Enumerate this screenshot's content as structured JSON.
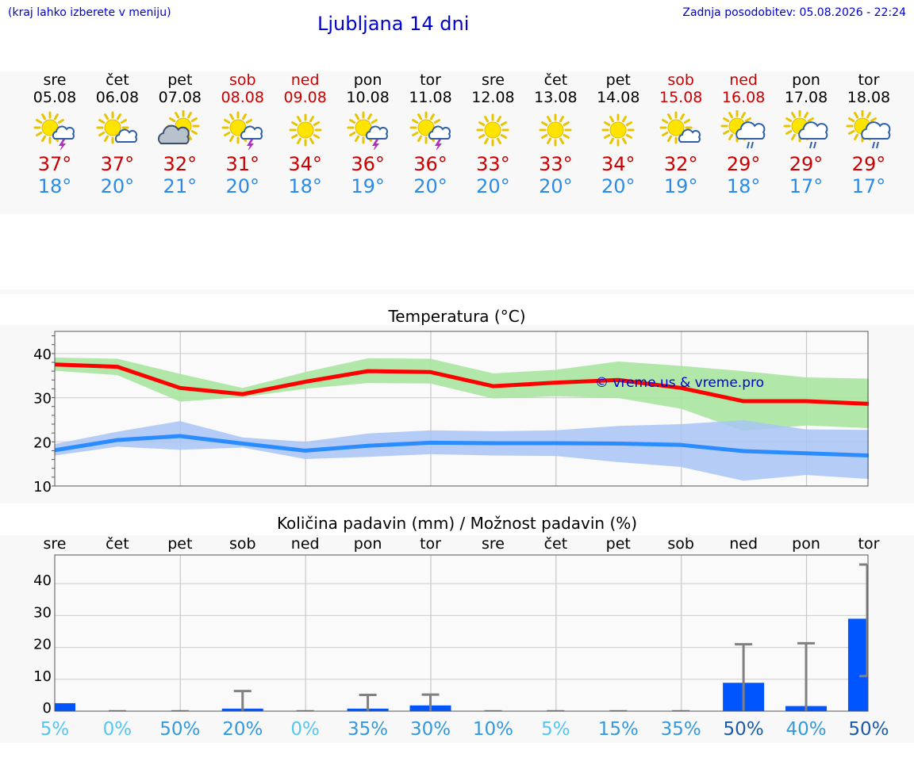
{
  "header": {
    "left_note": "(kraj lahko izberete v meniju)",
    "title": "Ljubljana 14 dni",
    "updated": "Zadnja posodobitev: 05.08.2026 - 22:24"
  },
  "days": [
    {
      "name": "sre",
      "date": "05.08",
      "icon": "sun-cloud-thunder-icon",
      "max": "37°",
      "min": "18°",
      "weekend": false
    },
    {
      "name": "čet",
      "date": "06.08",
      "icon": "sun-small-cloud-icon",
      "max": "37°",
      "min": "20°",
      "weekend": false
    },
    {
      "name": "pet",
      "date": "07.08",
      "icon": "sun-gray-cloud-icon",
      "max": "32°",
      "min": "21°",
      "weekend": false
    },
    {
      "name": "sob",
      "date": "08.08",
      "icon": "sun-cloud-thunder-icon",
      "max": "31°",
      "min": "20°",
      "weekend": true
    },
    {
      "name": "ned",
      "date": "09.08",
      "icon": "sun-icon",
      "max": "34°",
      "min": "18°",
      "weekend": true
    },
    {
      "name": "pon",
      "date": "10.08",
      "icon": "sun-cloud-thunder-icon",
      "max": "36°",
      "min": "19°",
      "weekend": false
    },
    {
      "name": "tor",
      "date": "11.08",
      "icon": "sun-cloud-thunder-icon",
      "max": "36°",
      "min": "20°",
      "weekend": false
    },
    {
      "name": "sre",
      "date": "12.08",
      "icon": "sun-icon",
      "max": "33°",
      "min": "20°",
      "weekend": false
    },
    {
      "name": "čet",
      "date": "13.08",
      "icon": "sun-icon",
      "max": "33°",
      "min": "20°",
      "weekend": false
    },
    {
      "name": "pet",
      "date": "14.08",
      "icon": "sun-icon",
      "max": "34°",
      "min": "20°",
      "weekend": false
    },
    {
      "name": "sob",
      "date": "15.08",
      "icon": "sun-small-cloud-icon",
      "max": "32°",
      "min": "19°",
      "weekend": true
    },
    {
      "name": "ned",
      "date": "16.08",
      "icon": "sun-cloud-rain-icon",
      "max": "29°",
      "min": "18°",
      "weekend": true
    },
    {
      "name": "pon",
      "date": "17.08",
      "icon": "sun-cloud-rain-icon",
      "max": "29°",
      "min": "17°",
      "weekend": false
    },
    {
      "name": "tor",
      "date": "18.08",
      "icon": "sun-cloud-rain-icon",
      "max": "29°",
      "min": "17°",
      "weekend": false
    }
  ],
  "colors": {
    "max_line": "#ff0000",
    "max_band": "#a8e6a0",
    "min_line": "#2a8cff",
    "min_band": "#a8c4f4",
    "bar": "#0055ff",
    "whisker": "#808080",
    "watermark": "#0000cc",
    "weekend": "#cc0000"
  },
  "chart_data": [
    {
      "type": "line",
      "title": "Temperatura (°C)",
      "watermark": "© vreme.us & vreme.pro",
      "ylim": [
        10,
        45
      ],
      "yticks": [
        10,
        20,
        30,
        40
      ],
      "series": [
        {
          "values": [
            37.5,
            37,
            32.2,
            30.8,
            33.6,
            36,
            35.8,
            32.6,
            33.4,
            34,
            32.2,
            29.2,
            29.2,
            28.6
          ],
          "band_high": [
            39.1,
            38.8,
            35.4,
            32.2,
            35.8,
            38.9,
            38.8,
            35.5,
            36.3,
            38.2,
            37.2,
            36,
            34.6,
            34.3
          ],
          "band_low": [
            36.1,
            35.1,
            29.1,
            30.1,
            32,
            33.3,
            33.2,
            29.8,
            30.3,
            29.9,
            27.5,
            22.5,
            23.7,
            23.1
          ]
        },
        {
          "values": [
            18.1,
            20.4,
            21.3,
            19.6,
            18,
            19.1,
            19.8,
            19.7,
            19.7,
            19.6,
            19.3,
            17.9,
            17.4,
            16.9
          ],
          "band_high": [
            19.5,
            22.3,
            24.7,
            21,
            20,
            21.9,
            22.6,
            22.4,
            22.6,
            23.6,
            24,
            24.9,
            22.8,
            22.7
          ],
          "band_low": [
            16.9,
            18.9,
            18.2,
            18.7,
            16.1,
            16.6,
            17.2,
            16.9,
            16.8,
            15.4,
            14.3,
            11.2,
            12.5,
            11.6
          ]
        }
      ]
    },
    {
      "type": "bar",
      "title": "Količina padavin (mm) / Možnost padavin (%)",
      "categories": [
        "sre",
        "čet",
        "pet",
        "sob",
        "ned",
        "pon",
        "tor",
        "sre",
        "čet",
        "pet",
        "sob",
        "ned",
        "pon",
        "tor"
      ],
      "ylim": [
        0,
        49
      ],
      "yticks": [
        0,
        10,
        20,
        30,
        40
      ],
      "values": [
        2.5,
        0,
        0,
        0.8,
        0,
        0.8,
        1.8,
        0,
        0,
        0,
        0,
        8.9,
        1.6,
        29
      ],
      "whisker_high": [
        2.5,
        0,
        0,
        6.3,
        0,
        5.1,
        5.2,
        0,
        0,
        0,
        0,
        21,
        21.3,
        46
      ],
      "whisker_low": [
        0,
        0,
        0,
        0,
        0,
        0,
        0,
        0,
        0,
        0,
        0,
        0,
        0,
        11
      ],
      "probability": [
        "5%",
        "0%",
        "50%",
        "20%",
        "0%",
        "35%",
        "30%",
        "10%",
        "5%",
        "15%",
        "35%",
        "50%",
        "40%",
        "50%"
      ],
      "probability_colors": [
        "#55c6ee",
        "#55c6ee",
        "#3399dd",
        "#3399dd",
        "#55c6ee",
        "#3399dd",
        "#3399dd",
        "#3399dd",
        "#55c6ee",
        "#3399dd",
        "#3399dd",
        "#1a5aa8",
        "#3399dd",
        "#1a5aa8"
      ]
    }
  ]
}
